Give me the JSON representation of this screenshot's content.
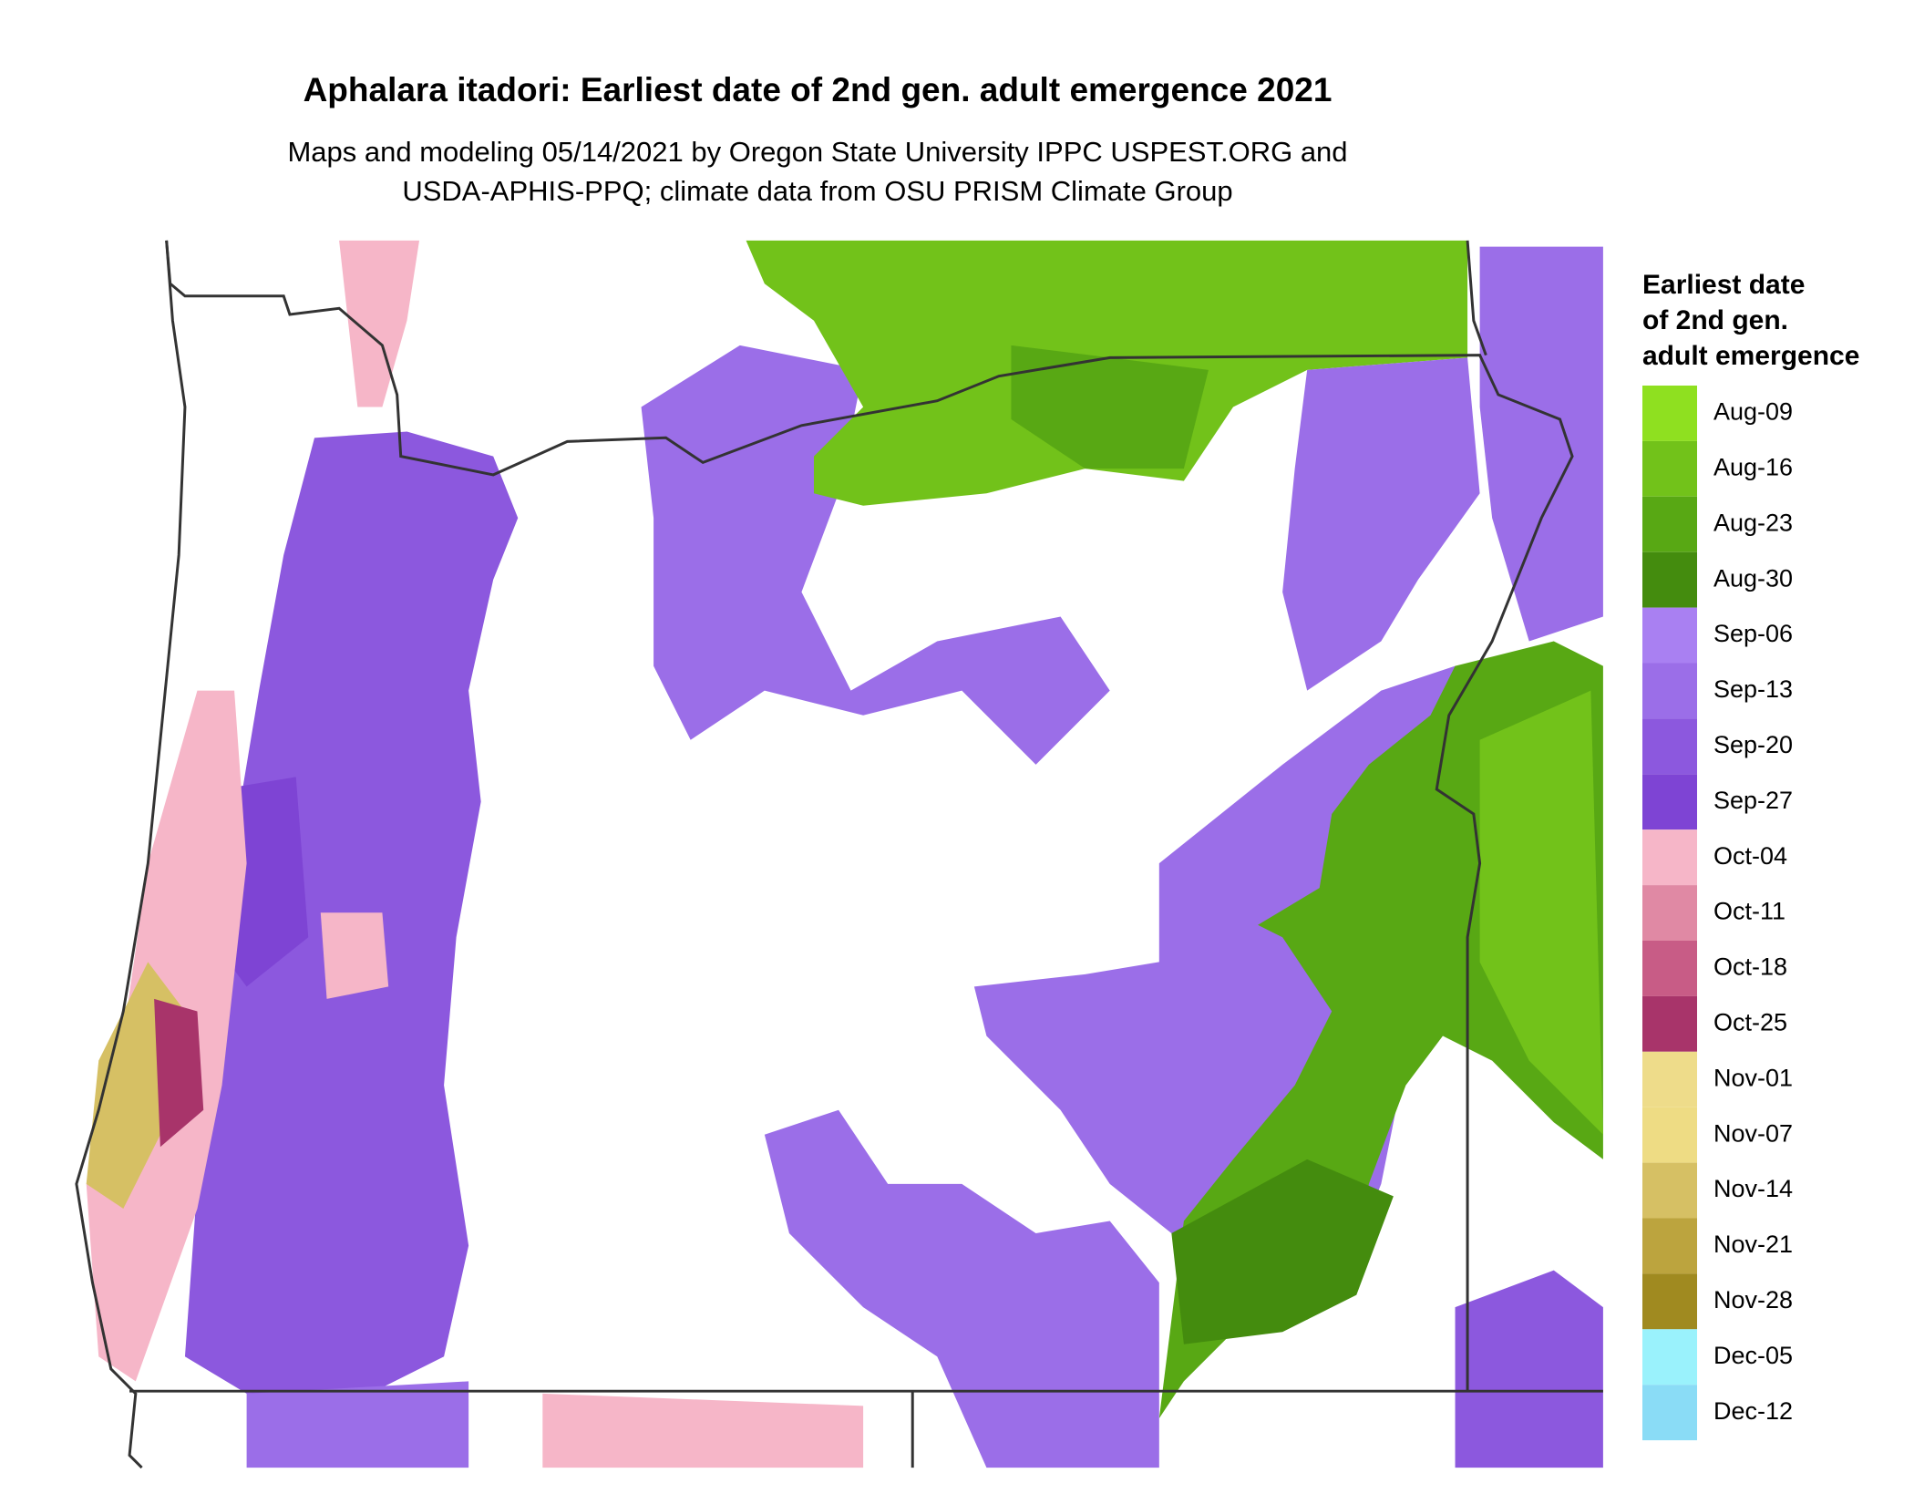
{
  "header": {
    "title": "Aphalara itadori: Earliest date of 2nd gen. adult emergence 2021",
    "subtitle_lines": [
      "Maps and modeling 05/14/2021 by Oregon State University IPPC USPEST.ORG and",
      "USDA-APHIS-PPQ; climate data from OSU PRISM Climate Group"
    ]
  },
  "legend": {
    "title_lines": [
      "Earliest date",
      "of 2nd gen.",
      "adult emergence"
    ],
    "entries": [
      {
        "label": "Aug-09",
        "color": "#8fe020"
      },
      {
        "label": "Aug-16",
        "color": "#72c21a"
      },
      {
        "label": "Aug-23",
        "color": "#58a814"
      },
      {
        "label": "Aug-30",
        "color": "#448c0e"
      },
      {
        "label": "Sep-06",
        "color": "#a980f2"
      },
      {
        "label": "Sep-13",
        "color": "#9b6ee8"
      },
      {
        "label": "Sep-20",
        "color": "#8c58de"
      },
      {
        "label": "Sep-27",
        "color": "#7e44d4"
      },
      {
        "label": "Oct-04",
        "color": "#f6b6c8"
      },
      {
        "label": "Oct-11",
        "color": "#e089a4"
      },
      {
        "label": "Oct-18",
        "color": "#c85c86"
      },
      {
        "label": "Oct-25",
        "color": "#a8346a"
      },
      {
        "label": "Nov-01",
        "color": "#eedc8a"
      },
      {
        "label": "Nov-07",
        "color": "#eedc84"
      },
      {
        "label": "Nov-14",
        "color": "#d6c064"
      },
      {
        "label": "Nov-21",
        "color": "#bca43e"
      },
      {
        "label": "Nov-28",
        "color": "#a08a20"
      },
      {
        "label": "Dec-05",
        "color": "#9af2fc"
      },
      {
        "label": "Dec-12",
        "color": "#8adcf6"
      }
    ]
  }
}
